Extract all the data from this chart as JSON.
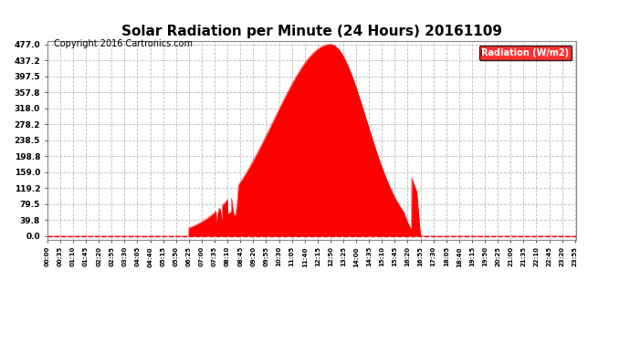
{
  "title": "Solar Radiation per Minute (24 Hours) 20161109",
  "copyright_text": "Copyright 2016 Cartronics.com",
  "legend_label": "Radiation (W/m2)",
  "yticks": [
    0.0,
    39.8,
    79.5,
    119.2,
    159.0,
    198.8,
    238.5,
    278.2,
    318.0,
    357.8,
    397.5,
    437.2,
    477.0
  ],
  "ymax": 477.0,
  "ymin": 0.0,
  "fill_color": "#FF0000",
  "line_color": "#FF0000",
  "background_color": "#FFFFFF",
  "grid_color": "#BBBBBB",
  "title_fontsize": 11,
  "copyright_fontsize": 7,
  "legend_bg": "#FF0000",
  "legend_text_color": "#FFFFFF"
}
